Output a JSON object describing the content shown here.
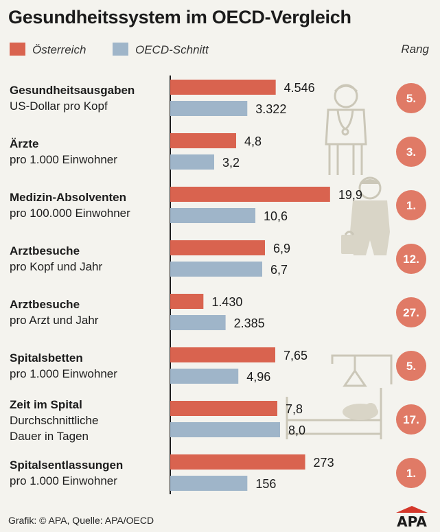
{
  "title": "Gesundheitssystem im OECD-Vergleich",
  "legend": {
    "austria": "Österreich",
    "oecd": "OECD-Schnitt",
    "rank": "Rang"
  },
  "colors": {
    "austria": "#d9634f",
    "oecd": "#9fb5c9",
    "rank_circle": "#e07a66",
    "illustration": "#d9d5c7"
  },
  "footer": "Grafik: © APA, Quelle: APA/OECD",
  "logo": "APA",
  "chart_data": {
    "type": "bar",
    "orientation": "horizontal",
    "title": "Gesundheitssystem im OECD-Vergleich",
    "series": [
      {
        "name": "Österreich"
      },
      {
        "name": "OECD-Schnitt"
      }
    ],
    "rows": [
      {
        "label": "Gesundheitsausgaben",
        "sublabel": [
          "US-Dollar pro Kopf"
        ],
        "austria": 4546,
        "oecd": 3322,
        "austria_label": "4.546",
        "oecd_label": "3.322",
        "rank": "5."
      },
      {
        "label": "Ärzte",
        "sublabel": [
          "pro 1.000 Einwohner"
        ],
        "austria": 4.8,
        "oecd": 3.2,
        "austria_label": "4,8",
        "oecd_label": "3,2",
        "rank": "3."
      },
      {
        "label": "Medizin-Absolventen",
        "sublabel": [
          "pro 100.000 Einwohner"
        ],
        "austria": 19.9,
        "oecd": 10.6,
        "austria_label": "19,9",
        "oecd_label": "10,6",
        "rank": "1."
      },
      {
        "label": "Arztbesuche",
        "sublabel": [
          "pro Kopf und Jahr"
        ],
        "austria": 6.9,
        "oecd": 6.7,
        "austria_label": "6,9",
        "oecd_label": "6,7",
        "rank": "12."
      },
      {
        "label": "Arztbesuche",
        "sublabel": [
          "pro Arzt und Jahr"
        ],
        "austria": 1430,
        "oecd": 2385,
        "austria_label": "1.430",
        "oecd_label": "2.385",
        "rank": "27."
      },
      {
        "label": "Spitalsbetten",
        "sublabel": [
          "pro 1.000 Einwohner"
        ],
        "austria": 7.65,
        "oecd": 4.96,
        "austria_label": "7,65",
        "oecd_label": "4,96",
        "rank": "5."
      },
      {
        "label": "Zeit im Spital",
        "sublabel": [
          "Durchschnittliche",
          "Dauer in Tagen"
        ],
        "austria": 7.8,
        "oecd": 8.0,
        "austria_label": "7,8",
        "oecd_label": "8,0",
        "rank": "17."
      },
      {
        "label": "Spitalsentlassungen",
        "sublabel": [
          "pro 1.000 Einwohner"
        ],
        "austria": 273,
        "oecd": 156,
        "austria_label": "273",
        "oecd_label": "156",
        "rank": "1."
      }
    ]
  }
}
